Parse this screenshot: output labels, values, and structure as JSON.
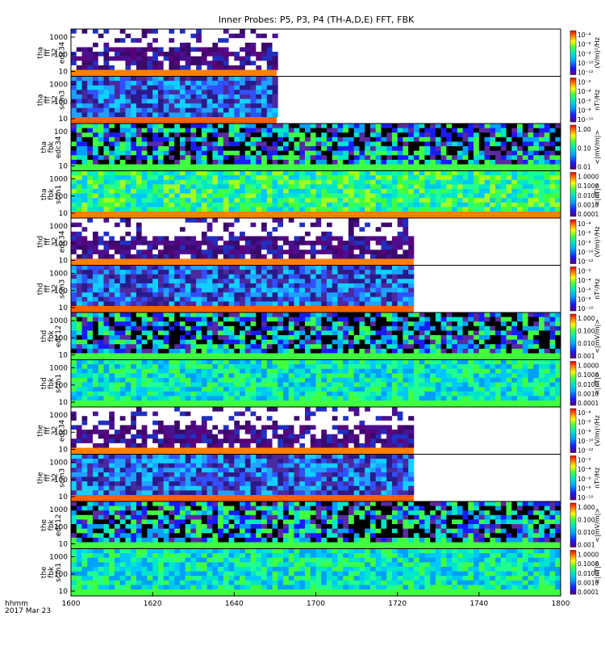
{
  "chart_data": {
    "type": "heatmap",
    "title": "Inner Probes: P5, P3, P4 (TH-A,D,E) FFT, FBK",
    "x": {
      "ticks": [
        "1600",
        "1620",
        "1640",
        "1700",
        "1720",
        "1740",
        "1800"
      ],
      "label_lines": [
        "hhmm",
        "2017 Mar 23"
      ]
    },
    "y_ticks_default": [
      "1000",
      "100",
      "10"
    ],
    "panels": [
      {
        "label": [
          "tha",
          "fff",
          "32",
          "edc34"
        ],
        "y_ticks": [
          "1000",
          "100",
          "10"
        ],
        "cb_ticks": [
          "10⁻⁴",
          "10⁻⁶",
          "10⁻⁸",
          "10⁻¹⁰",
          "10⁻¹²"
        ],
        "cb_label": "(V/m)²/Hz",
        "palette": "sparse",
        "coverage": 0.42,
        "seed": 3
      },
      {
        "label": [
          "tha",
          "fff",
          "32",
          "scm3"
        ],
        "y_ticks": [
          "1000",
          "100",
          "10"
        ],
        "cb_ticks": [
          "10⁻²",
          "10⁻⁴",
          "10⁻⁶",
          "10⁻⁸",
          "10⁻¹⁰"
        ],
        "cb_label": "nT²/Hz",
        "palette": "scm",
        "coverage": 0.42,
        "seed": 7
      },
      {
        "label": [
          "tha",
          "fbk",
          "edc34"
        ],
        "y_ticks": [
          "100",
          "10"
        ],
        "cb_ticks": [
          "1.00",
          "0.10",
          "0.01"
        ],
        "cb_label": "<|mV/m|>",
        "palette": "edc",
        "coverage": 1.0,
        "seed": 11
      },
      {
        "label": [
          "tha",
          "fbk",
          "scm1"
        ],
        "y_ticks": [
          "1000",
          "100",
          "10"
        ],
        "cb_ticks": [
          "1.0000",
          "0.1000",
          "0.0100",
          "0.0010",
          "0.0001"
        ],
        "cb_label": "<|nT|>",
        "palette": "scm1a",
        "coverage": 1.0,
        "seed": 13
      },
      {
        "label": [
          "thd",
          "fff",
          "32",
          "edc34"
        ],
        "y_ticks": [
          "1000",
          "100",
          "10"
        ],
        "cb_ticks": [
          "10⁻⁴",
          "10⁻⁶",
          "10⁻⁸",
          "10⁻¹⁰",
          "10⁻¹²"
        ],
        "cb_label": "(V/m)²/Hz",
        "palette": "sparse",
        "coverage": 0.7,
        "seed": 17
      },
      {
        "label": [
          "thd",
          "fff",
          "32",
          "scm3"
        ],
        "y_ticks": [
          "1000",
          "100",
          "10"
        ],
        "cb_ticks": [
          "10⁻²",
          "10⁻⁴",
          "10⁻⁶",
          "10⁻⁸",
          "10⁻¹⁰"
        ],
        "cb_label": "nT²/Hz",
        "palette": "scm",
        "coverage": 0.7,
        "seed": 19
      },
      {
        "label": [
          "thd",
          "fbk",
          "edc12"
        ],
        "y_ticks": [
          "1000",
          "100",
          "10"
        ],
        "cb_ticks": [
          "1.000",
          "0.100",
          "0.010",
          "0.001"
        ],
        "cb_label": "<|mV/m|>",
        "palette": "edc",
        "coverage": 1.0,
        "seed": 23
      },
      {
        "label": [
          "thd",
          "fbk",
          "scm1"
        ],
        "y_ticks": [
          "1000",
          "100",
          "10"
        ],
        "cb_ticks": [
          "1.0000",
          "0.1000",
          "0.0100",
          "0.0010",
          "0.0001"
        ],
        "cb_label": "<|nT|>",
        "palette": "scm1",
        "coverage": 1.0,
        "seed": 29
      },
      {
        "label": [
          "the",
          "fff",
          "32",
          "edc34"
        ],
        "y_ticks": [
          "1000",
          "100",
          "10"
        ],
        "cb_ticks": [
          "10⁻⁴",
          "10⁻⁶",
          "10⁻⁸",
          "10⁻¹⁰",
          "10⁻¹²"
        ],
        "cb_label": "(V/m)²/Hz",
        "palette": "sparse",
        "coverage": 0.7,
        "seed": 31
      },
      {
        "label": [
          "the",
          "fff",
          "32",
          "scm3"
        ],
        "y_ticks": [
          "1000",
          "100",
          "10"
        ],
        "cb_ticks": [
          "10⁻²",
          "10⁻⁴",
          "10⁻⁶",
          "10⁻⁸",
          "10⁻¹⁰"
        ],
        "cb_label": "nT²/Hz",
        "palette": "scm",
        "coverage": 0.7,
        "seed": 37
      },
      {
        "label": [
          "the",
          "fbk",
          "edc12"
        ],
        "y_ticks": [
          "1000",
          "100",
          "10"
        ],
        "cb_ticks": [
          "1.000",
          "0.100",
          "0.010",
          "0.001"
        ],
        "cb_label": "<|mV/m|>",
        "palette": "edc",
        "coverage": 1.0,
        "seed": 41
      },
      {
        "label": [
          "the",
          "fbk",
          "scm1"
        ],
        "y_ticks": [
          "1000",
          "100",
          "10"
        ],
        "cb_ticks": [
          "1.0000",
          "0.1000",
          "0.0100",
          "0.0010",
          "0.0001"
        ],
        "cb_label": "<|nT|>",
        "palette": "scm1",
        "coverage": 1.0,
        "seed": 43
      }
    ]
  }
}
